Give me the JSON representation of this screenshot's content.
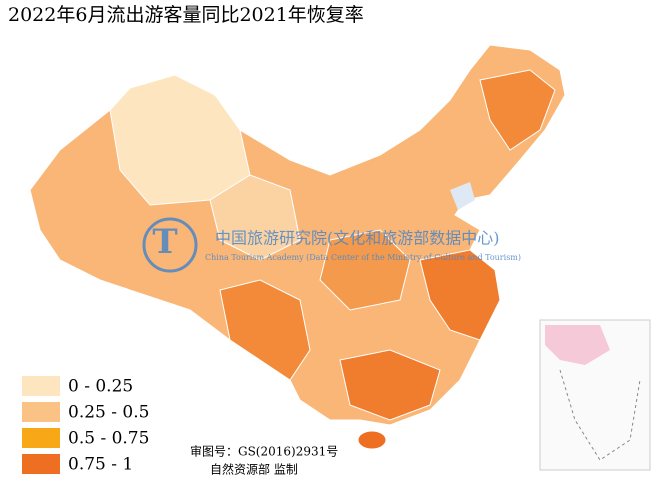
{
  "title": "2022年6月流出游客量同比2021年恢复率",
  "legend": {
    "items": [
      {
        "label": "0 - 0.25",
        "color": "#fde5bf"
      },
      {
        "label": "0.25 - 0.5",
        "color": "#fbc286"
      },
      {
        "label": "0.5 - 0.75",
        "color": "#f8a816"
      },
      {
        "label": "0.75 - 1",
        "color": "#ef6f22"
      }
    ]
  },
  "watermark": {
    "name_cn": "中国旅游研究院(文化和旅游部数据中心)",
    "name_en": "China Tourism Academy (Data Center of the Ministry of Culture and Tourism)"
  },
  "map_notes": {
    "review_number": "审图号：GS(2016)2931号",
    "supervisor": "自然资源部 监制"
  }
}
